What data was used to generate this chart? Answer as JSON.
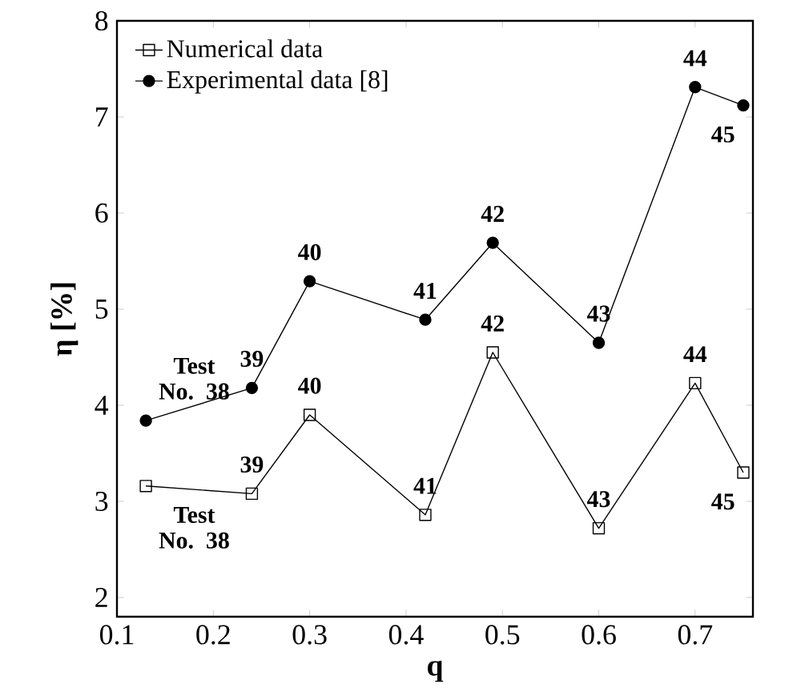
{
  "chart_data": {
    "type": "line",
    "xlabel": "q",
    "ylabel": "η [%]",
    "x": [
      0.13,
      0.24,
      0.3,
      0.42,
      0.49,
      0.6,
      0.7,
      0.75
    ],
    "series": [
      {
        "name": "Numerical data",
        "color": "#000000",
        "marker": "square",
        "values": [
          3.16,
          3.08,
          3.9,
          2.86,
          4.55,
          2.72,
          4.23,
          3.3
        ]
      },
      {
        "name": "Experimental data [8]",
        "color": "#000000",
        "marker": "circle",
        "values": [
          3.84,
          4.18,
          5.29,
          4.89,
          5.69,
          4.65,
          7.31,
          7.12
        ]
      }
    ],
    "xlim": [
      0.1,
      0.76
    ],
    "ylim": [
      1.8,
      8
    ],
    "xticks": [
      0.1,
      0.2,
      0.3,
      0.4,
      0.5,
      0.6,
      0.7
    ],
    "yticks": [
      2,
      3,
      4,
      5,
      6,
      7,
      8
    ],
    "legend": "top left",
    "grid": false,
    "annotations": [
      {
        "text": "Test No. 38",
        "x": 0.13,
        "y": 3.16
      },
      {
        "text": "39",
        "x": 0.24,
        "y": 3.08
      },
      {
        "text": "40",
        "x": 0.3,
        "y": 3.9
      },
      {
        "text": "41",
        "x": 0.42,
        "y": 2.86
      },
      {
        "text": "42",
        "x": 0.49,
        "y": 4.55
      },
      {
        "text": "43",
        "x": 0.6,
        "y": 2.72
      },
      {
        "text": "44",
        "x": 0.7,
        "y": 4.23
      },
      {
        "text": "45",
        "x": 0.75,
        "y": 3.3
      },
      {
        "text": "Test No. 38",
        "x": 0.13,
        "y": 3.84
      },
      {
        "text": "39",
        "x": 0.24,
        "y": 4.18
      },
      {
        "text": "40",
        "x": 0.3,
        "y": 5.29
      },
      {
        "text": "41",
        "x": 0.42,
        "y": 4.89
      },
      {
        "text": "42",
        "x": 0.49,
        "y": 5.69
      },
      {
        "text": "43",
        "x": 0.6,
        "y": 4.65
      },
      {
        "text": "44",
        "x": 0.7,
        "y": 7.31
      },
      {
        "text": "45",
        "x": 0.75,
        "y": 7.12
      }
    ]
  }
}
